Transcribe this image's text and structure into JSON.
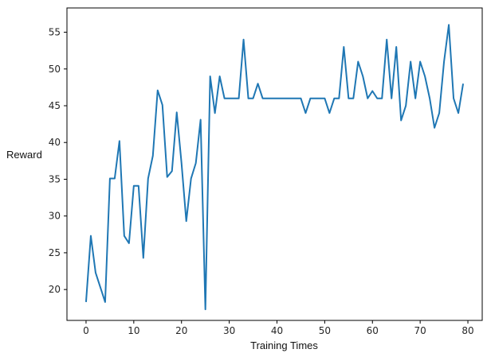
{
  "chart_data": {
    "type": "line",
    "xlabel": "Training Times",
    "ylabel": "Reward",
    "xlim": [
      -4,
      83
    ],
    "ylim": [
      15.8,
      58.3
    ],
    "xticks": [
      0,
      10,
      20,
      30,
      40,
      50,
      60,
      70,
      80
    ],
    "yticks": [
      20,
      25,
      30,
      35,
      40,
      45,
      50,
      55
    ],
    "grid": false,
    "legend": "none",
    "series": [
      {
        "color": "#1f77b4",
        "x": [
          0,
          1,
          2,
          3,
          4,
          5,
          6,
          7,
          8,
          9,
          10,
          11,
          12,
          13,
          14,
          15,
          16,
          17,
          18,
          19,
          20,
          21,
          22,
          23,
          24,
          25,
          26,
          27,
          28,
          29,
          30,
          31,
          32,
          33,
          34,
          35,
          36,
          37,
          38,
          39,
          40,
          41,
          42,
          43,
          44,
          45,
          46,
          47,
          48,
          49,
          50,
          51,
          52,
          53,
          54,
          55,
          56,
          57,
          58,
          59,
          60,
          61,
          62,
          63,
          64,
          65,
          66,
          67,
          68,
          69,
          70,
          71,
          72,
          73,
          74,
          75,
          76,
          77,
          78,
          79
        ],
        "y": [
          18.3,
          27.3,
          22.3,
          20.3,
          18.3,
          35.1,
          35.1,
          40.2,
          27.3,
          26.3,
          34.1,
          34.1,
          24.3,
          35.1,
          38.2,
          47.1,
          45.1,
          35.3,
          36.1,
          44.1,
          37.2,
          29.3,
          35.1,
          37.2,
          43.1,
          17.3,
          49.0,
          44.0,
          49.0,
          46.0,
          46.0,
          46.0,
          46.0,
          54.0,
          46.0,
          46.0,
          48.0,
          46.0,
          46.0,
          46.0,
          46.0,
          46.0,
          46.0,
          46.0,
          46.0,
          46.0,
          44.0,
          46.0,
          46.0,
          46.0,
          46.0,
          44.0,
          46.0,
          46.0,
          53.0,
          46.0,
          46.0,
          51.0,
          49.0,
          46.0,
          47.0,
          46.0,
          46.0,
          54.0,
          46.0,
          53.0,
          43.0,
          45.0,
          51.0,
          46.0,
          51.0,
          49.0,
          46.0,
          42.0,
          44.0,
          51.0,
          56.0,
          46.0,
          44.0,
          48.0
        ]
      }
    ]
  }
}
